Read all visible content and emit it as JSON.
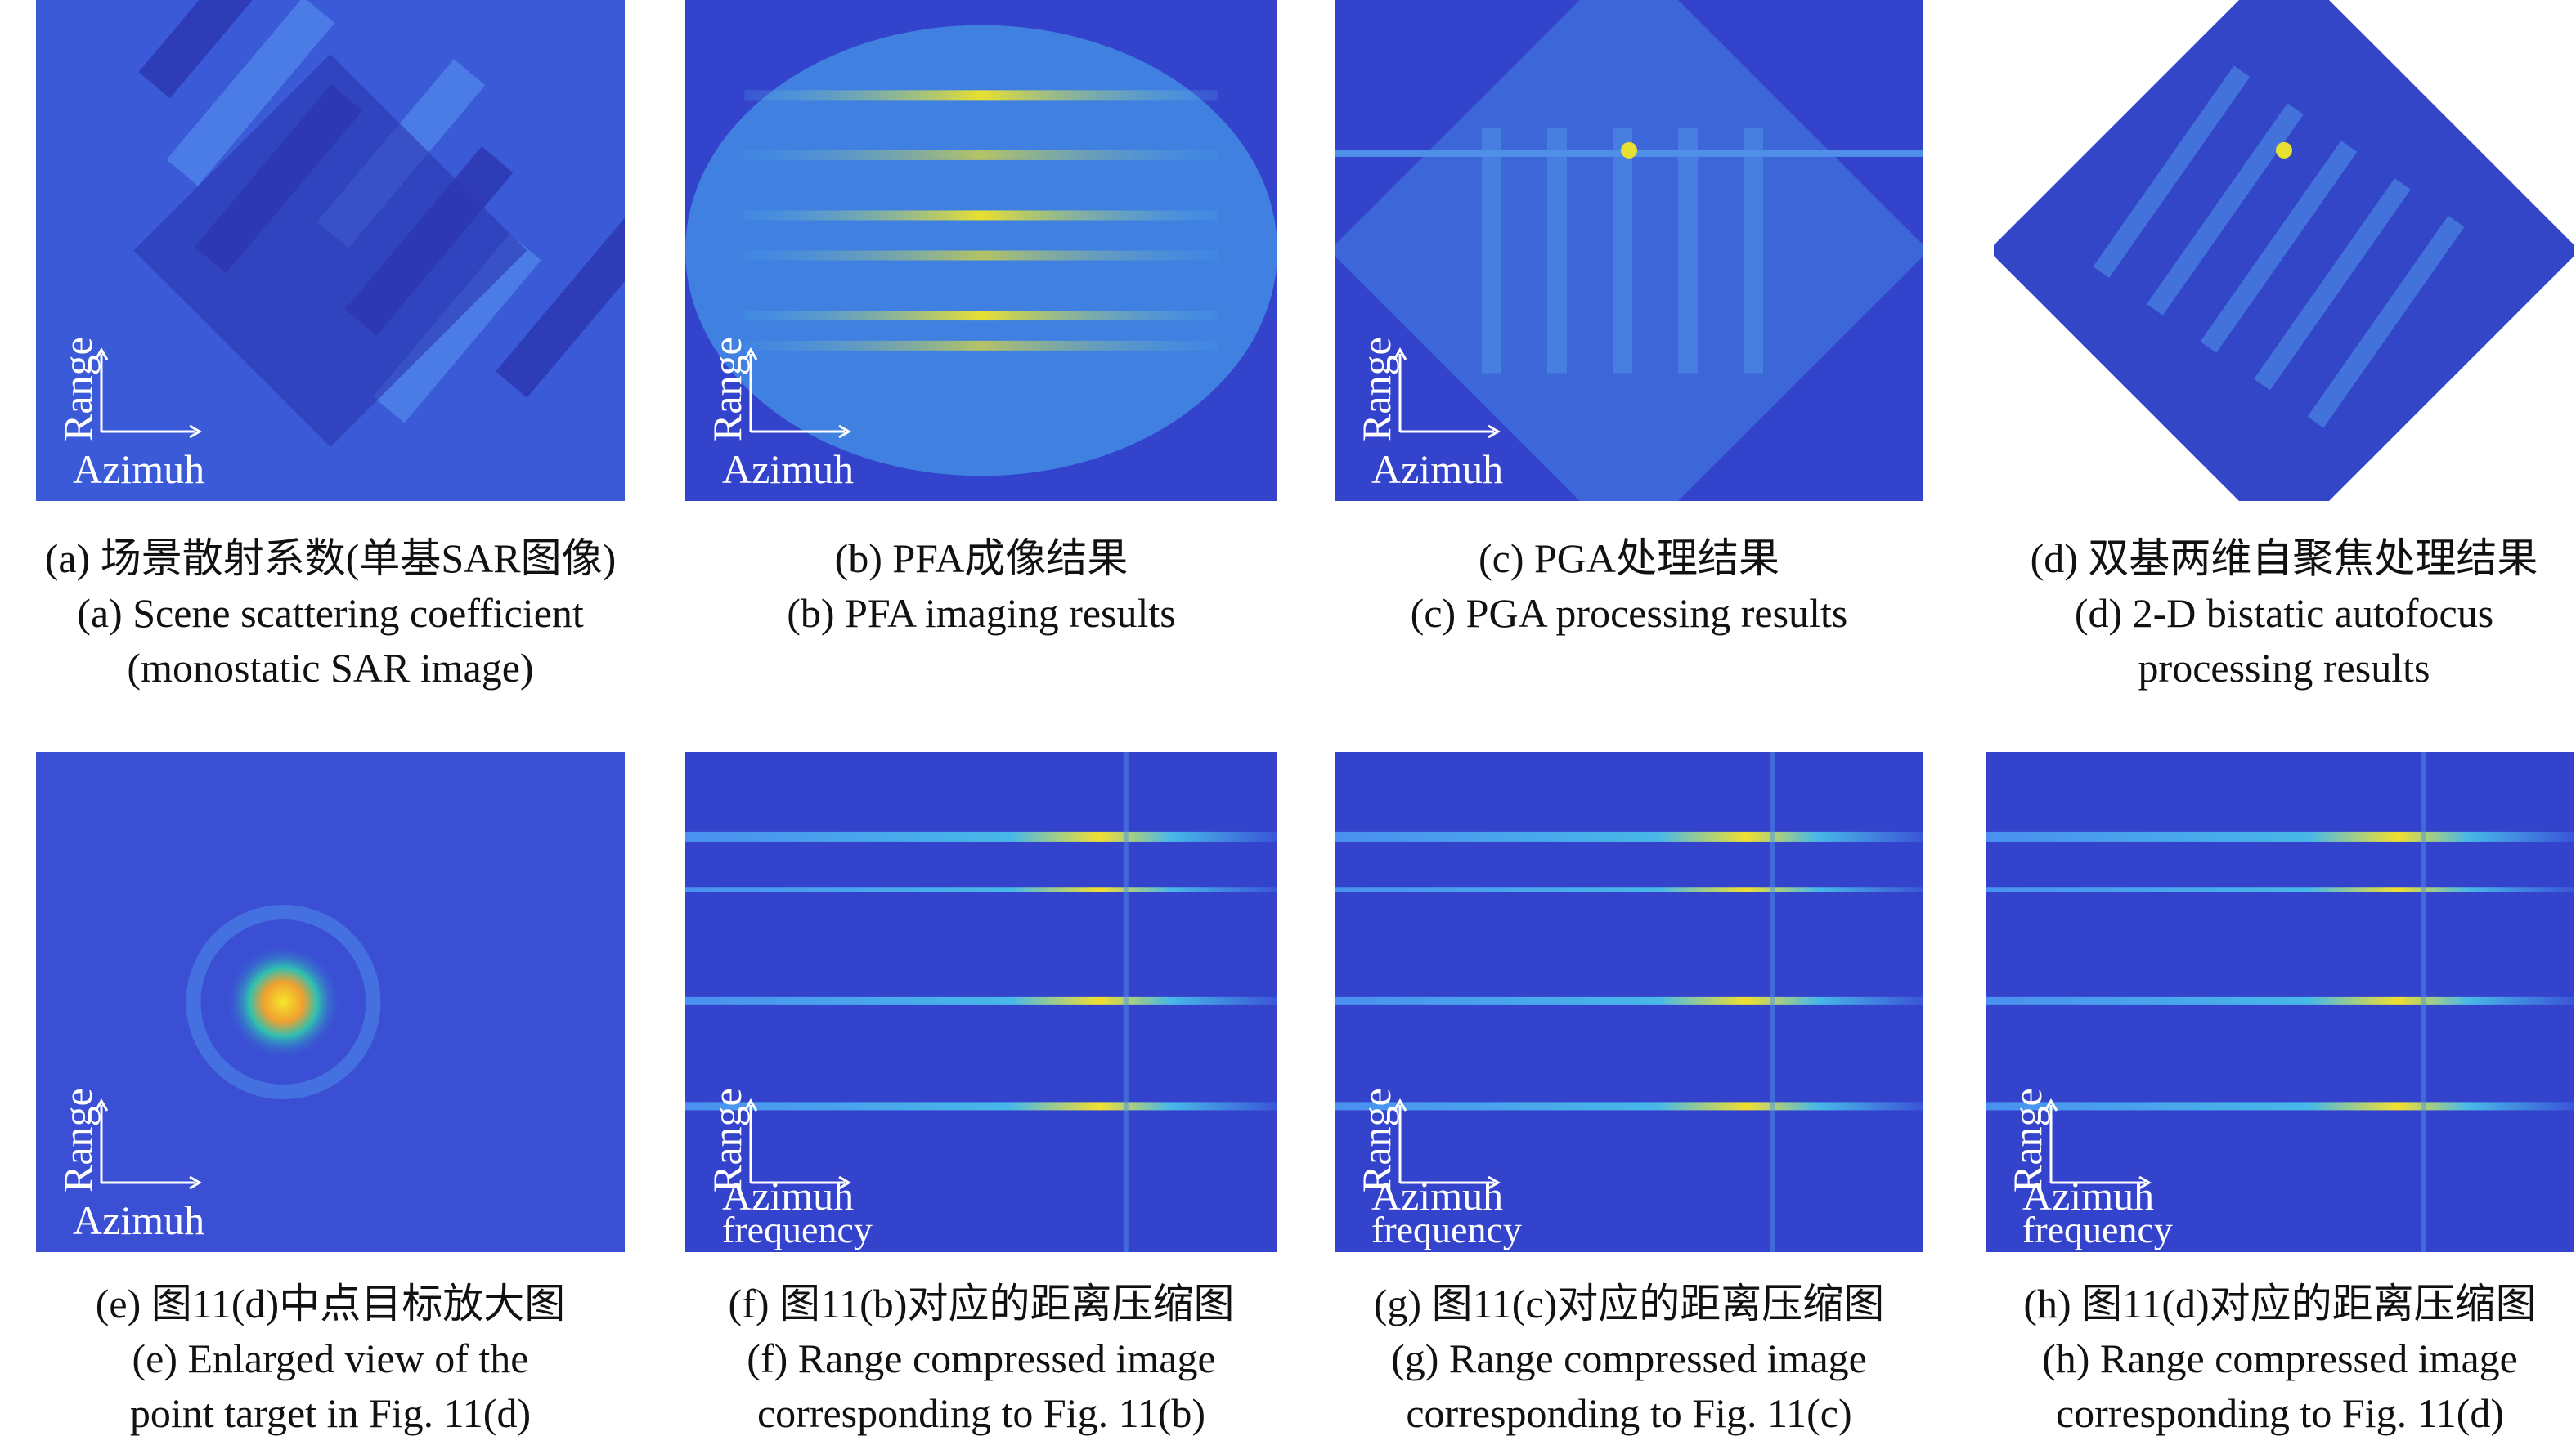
{
  "panels": [
    {
      "kind": "scene",
      "range": "Range",
      "azimuth": [
        "Azimuh"
      ],
      "caption": [
        "(a) 场景散射系数(单基SAR图像)",
        "(a) Scene scattering coefficient",
        "(monostatic SAR image)"
      ]
    },
    {
      "kind": "pfa",
      "range": "Range",
      "azimuth": [
        "Azimuh"
      ],
      "caption": [
        "(b) PFA成像结果",
        "(b) PFA imaging results"
      ]
    },
    {
      "kind": "pga",
      "range": "Range",
      "azimuth": [
        "Azimuh"
      ],
      "caption": [
        "(c) PGA处理结果",
        "(c) PGA processing results"
      ]
    },
    {
      "kind": "bistatic",
      "range": "Range",
      "azimuth": [
        "Azimuh"
      ],
      "caption": [
        "(d) 双基两维自聚焦处理结果",
        "(d) 2-D bistatic autofocus",
        "processing results"
      ]
    },
    {
      "kind": "point",
      "range": "Range",
      "azimuth": [
        "Azimuh"
      ],
      "caption": [
        "(e) 图11(d)中点目标放大图",
        "(e) Enlarged view of the",
        "point target in Fig. 11(d)"
      ]
    },
    {
      "kind": "rc",
      "range": "Range",
      "azimuth": [
        "Azimuh",
        "frequency"
      ],
      "caption": [
        "(f) 图11(b)对应的距离压缩图",
        "(f) Range compressed image",
        "corresponding to Fig. 11(b)"
      ]
    },
    {
      "kind": "rc",
      "range": "Range",
      "azimuth": [
        "Azimuh",
        "frequency"
      ],
      "caption": [
        "(g) 图11(c)对应的距离压缩图",
        "(g) Range compressed image",
        "corresponding to Fig. 11(c)"
      ]
    },
    {
      "kind": "rc",
      "range": "Range",
      "azimuth": [
        "Azimuh",
        "frequency"
      ],
      "caption": [
        "(h) 图11(d)对应的距离压缩图",
        "(h) Range compressed image",
        "corresponding to Fig. 11(d)"
      ]
    }
  ]
}
